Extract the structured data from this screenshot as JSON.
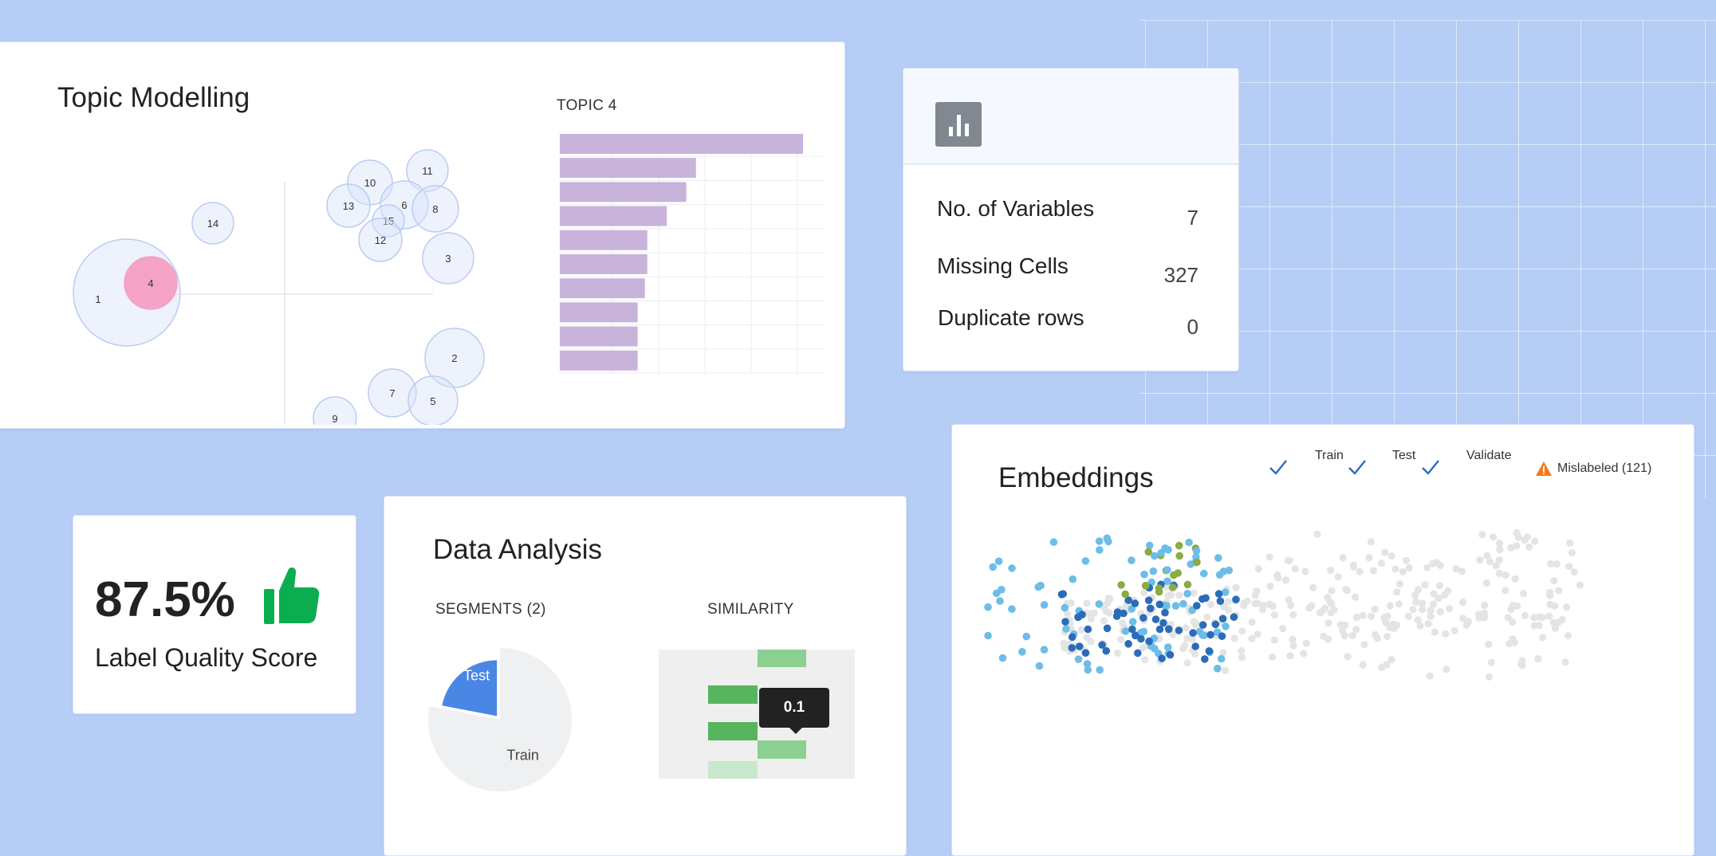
{
  "topic_modelling": {
    "title": "Topic Modelling",
    "topic_label": "TOPIC 4",
    "bubbles": [
      {
        "id": "1"
      },
      {
        "id": "4"
      },
      {
        "id": "14"
      },
      {
        "id": "10"
      },
      {
        "id": "11"
      },
      {
        "id": "13"
      },
      {
        "id": "6"
      },
      {
        "id": "8"
      },
      {
        "id": "15"
      },
      {
        "id": "12"
      },
      {
        "id": "3"
      },
      {
        "id": "2"
      },
      {
        "id": "7"
      },
      {
        "id": "5"
      },
      {
        "id": "9"
      }
    ],
    "chart_data": {
      "type": "bar",
      "orientation": "horizontal",
      "title": "TOPIC 4",
      "values": [
        1.0,
        0.56,
        0.52,
        0.44,
        0.36,
        0.36,
        0.35,
        0.32,
        0.32,
        0.32
      ],
      "grid": true
    }
  },
  "data_summary": {
    "icon": "bar-chart-icon",
    "rows": [
      {
        "label": "No. of Variables",
        "value": "7"
      },
      {
        "label": "Missing Cells",
        "value": "327"
      },
      {
        "label": "Duplicate rows",
        "value": "0"
      }
    ]
  },
  "label_quality": {
    "score": "87.5%",
    "label": "Label Quality Score",
    "icon": "thumbs-up-icon",
    "icon_color": "#0bae4f"
  },
  "data_analysis": {
    "title": "Data Analysis",
    "segments_label": "SEGMENTS (2)",
    "similarity_label": "SIMILARITY",
    "pie": {
      "type": "pie",
      "slices": [
        {
          "label": "Train",
          "value": 78,
          "color": "#eff0f2"
        },
        {
          "label": "Test",
          "value": 22,
          "color": "#4a86e4"
        }
      ]
    },
    "tooltip_value": "0.1"
  },
  "embeddings": {
    "title": "Embeddings",
    "legend": [
      {
        "label": "Train",
        "checked": true
      },
      {
        "label": "Test",
        "checked": true
      },
      {
        "label": "Validate",
        "checked": true
      }
    ],
    "mislabeled": "Mislabeled (121)",
    "warning_color": "#f07a22",
    "colors": {
      "light_blue": "#6dbde8",
      "dark_blue": "#2b6cb8",
      "green": "#8aab45",
      "grey": "#e4e4e4"
    }
  }
}
